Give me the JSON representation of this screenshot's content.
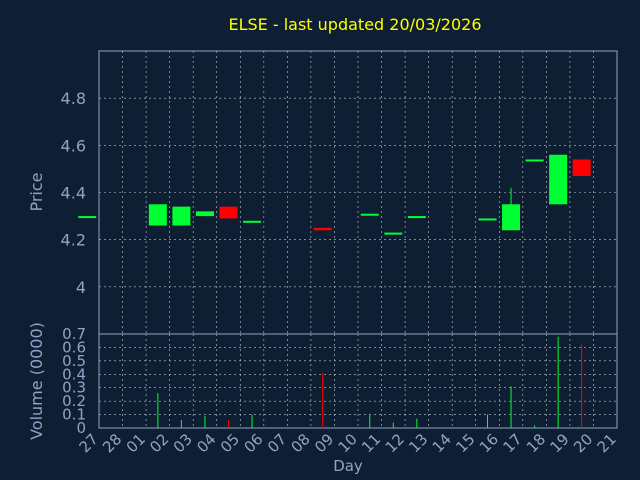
{
  "chart_data": {
    "type": "candlestick",
    "title": "ELSE - last updated 20/03/2026",
    "xlabel": "Day",
    "colors": {
      "background": "#0f1f33",
      "up": "#00ff33",
      "down": "#ff0000",
      "title": "#ffff00",
      "axis_text": "#8fa3c6",
      "grid": "#ffffff"
    },
    "x_ticks": [
      "27",
      "28",
      "01",
      "02",
      "03",
      "04",
      "05",
      "06",
      "07",
      "08",
      "09",
      "10",
      "11",
      "12",
      "13",
      "14",
      "15",
      "16",
      "17",
      "18",
      "19",
      "20",
      "21"
    ],
    "price_panel": {
      "ylabel": "Price",
      "ylim": [
        3.8,
        5.0
      ],
      "y_ticks": [
        4,
        4.2,
        4.4,
        4.6,
        4.8
      ],
      "y_tick_labels": [
        "4",
        "4.2",
        "4.4",
        "4.6",
        "4.8"
      ],
      "grid": true
    },
    "volume_panel": {
      "ylabel": "Volume (0000)",
      "ylim": [
        0,
        0.7
      ],
      "y_ticks": [
        0,
        0.1,
        0.2,
        0.3,
        0.4,
        0.5,
        0.6,
        0.7
      ],
      "y_tick_labels": [
        "0",
        "0.1",
        "0.2",
        "0.3",
        "0.4",
        "0.5",
        "0.6",
        "0.7"
      ],
      "grid": true
    },
    "candles": [
      {
        "day": "27",
        "open": 4.3,
        "high": 4.3,
        "low": 4.3,
        "close": 4.3,
        "volume": 0.0
      },
      {
        "day": "02",
        "open": 4.26,
        "high": 4.35,
        "low": 4.26,
        "close": 4.35,
        "volume": 0.26
      },
      {
        "day": "03",
        "open": 4.26,
        "high": 4.34,
        "low": 4.26,
        "close": 4.34,
        "volume": 0.06
      },
      {
        "day": "04",
        "open": 4.3,
        "high": 4.32,
        "low": 4.3,
        "close": 4.32,
        "volume": 0.09
      },
      {
        "day": "05",
        "open": 4.34,
        "high": 4.34,
        "low": 4.29,
        "close": 4.29,
        "volume": 0.06
      },
      {
        "day": "06",
        "open": 4.28,
        "high": 4.28,
        "low": 4.28,
        "close": 4.28,
        "volume": 0.1
      },
      {
        "day": "09",
        "open": 4.25,
        "high": 4.25,
        "low": 4.24,
        "close": 4.24,
        "volume": 0.41
      },
      {
        "day": "11",
        "open": 4.31,
        "high": 4.31,
        "low": 4.31,
        "close": 4.31,
        "volume": 0.1
      },
      {
        "day": "12",
        "open": 4.23,
        "high": 4.23,
        "low": 4.23,
        "close": 4.23,
        "volume": 0.04
      },
      {
        "day": "13",
        "open": 4.3,
        "high": 4.3,
        "low": 4.3,
        "close": 4.3,
        "volume": 0.07
      },
      {
        "day": "16",
        "open": 4.29,
        "high": 4.29,
        "low": 4.29,
        "close": 4.29,
        "volume": 0.1
      },
      {
        "day": "17",
        "open": 4.24,
        "high": 4.42,
        "low": 4.24,
        "close": 4.35,
        "volume": 0.31
      },
      {
        "day": "18",
        "open": 4.54,
        "high": 4.54,
        "low": 4.54,
        "close": 4.54,
        "volume": 0.02
      },
      {
        "day": "19",
        "open": 4.35,
        "high": 4.56,
        "low": 4.35,
        "close": 4.56,
        "volume": 0.68
      },
      {
        "day": "20",
        "open": 4.54,
        "high": 4.54,
        "low": 4.47,
        "close": 4.47,
        "volume": 0.62
      }
    ]
  }
}
